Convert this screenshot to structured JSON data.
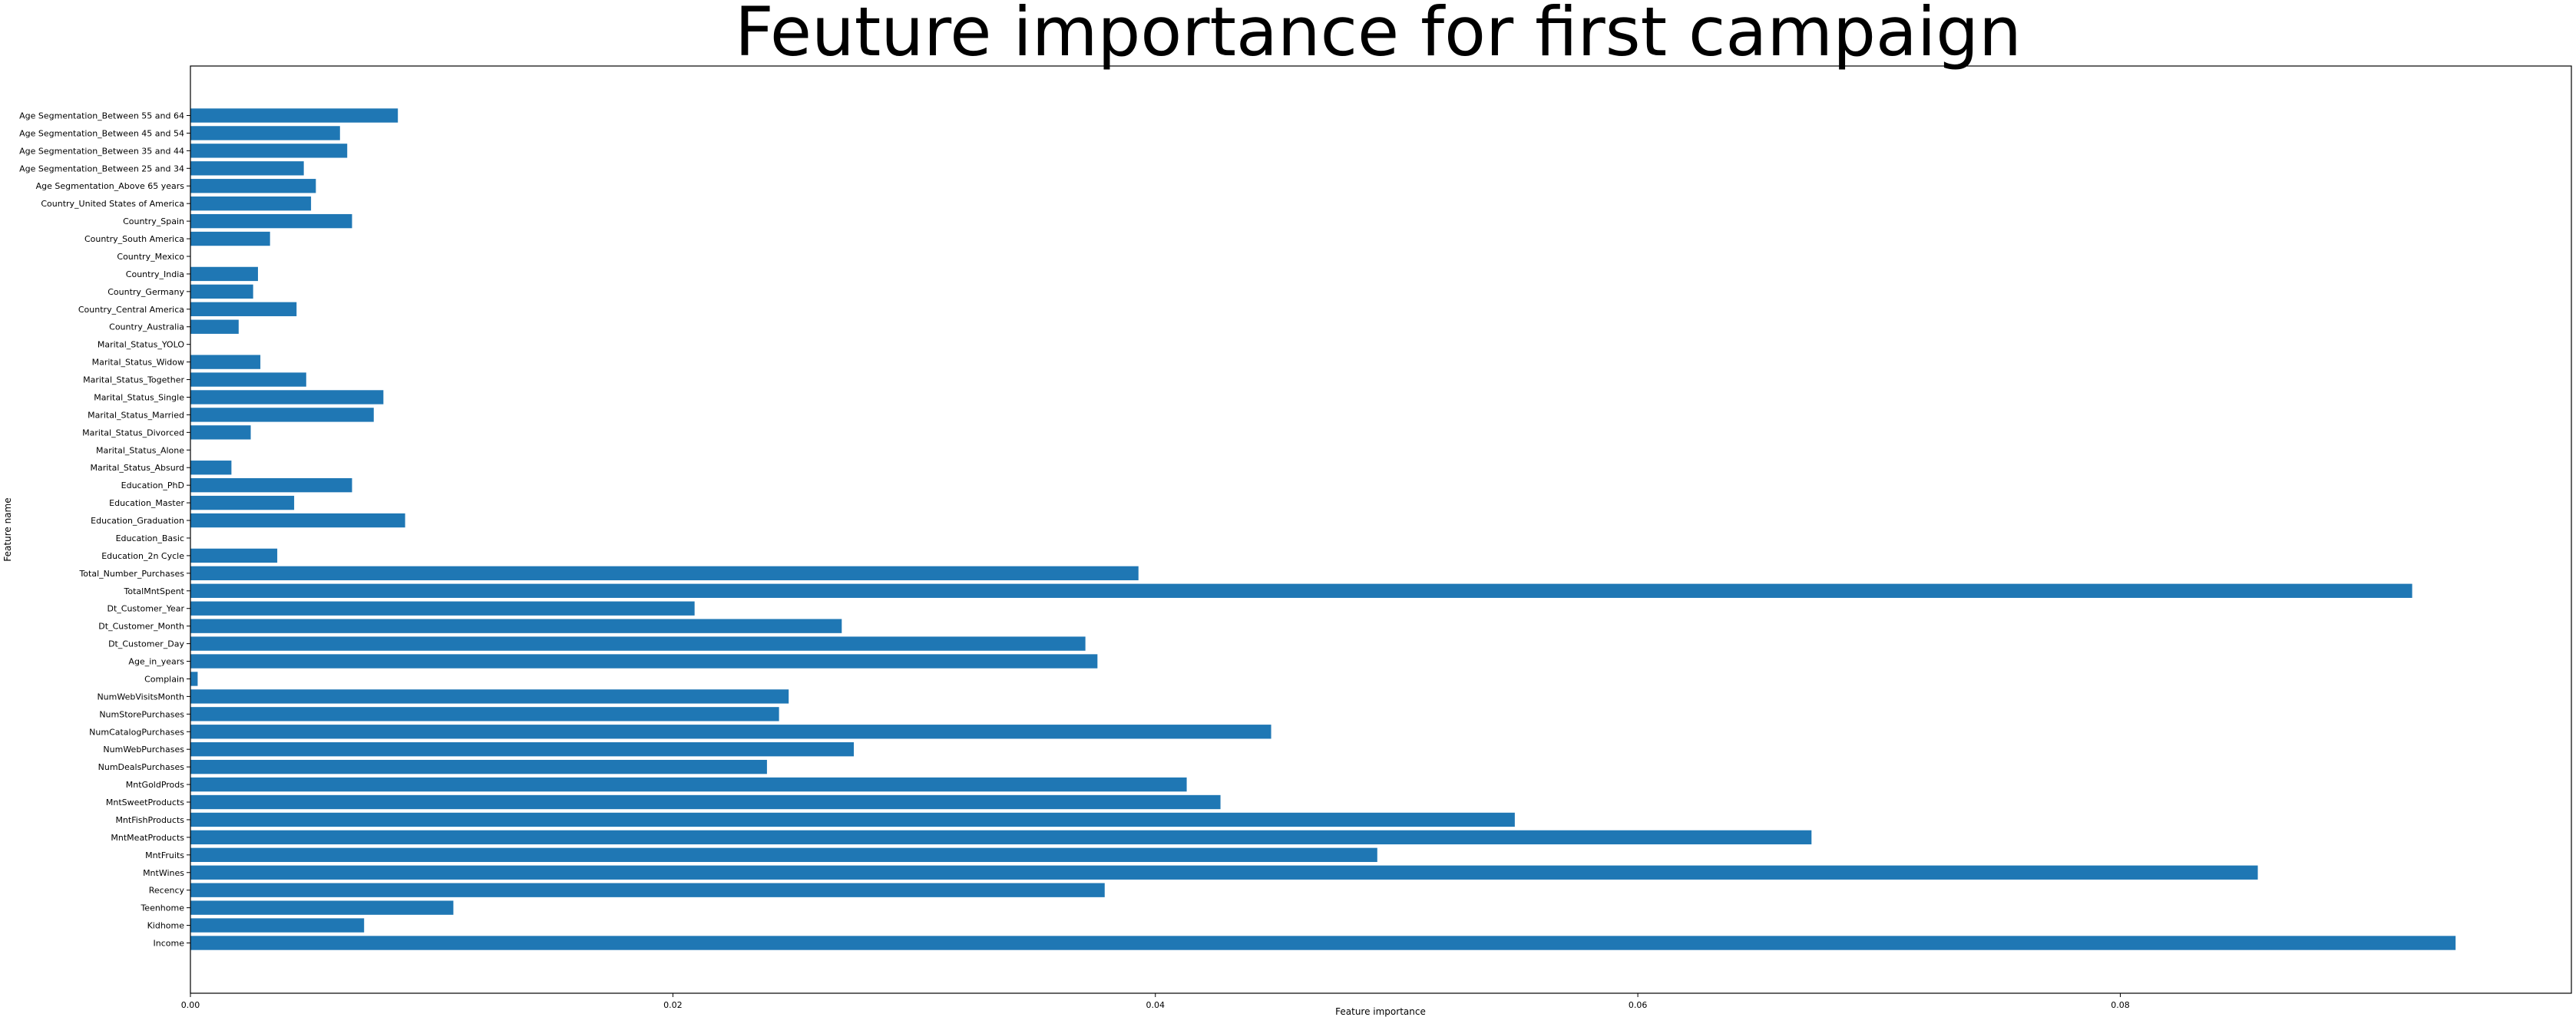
{
  "chart_data": {
    "type": "bar",
    "orientation": "horizontal",
    "title": "Feuture importance for first campaign",
    "xlabel": "Feature importance",
    "ylabel": "Feature name",
    "xlim": [
      0,
      0.0987
    ],
    "xticks": [
      0.0,
      0.02,
      0.04,
      0.06,
      0.08
    ],
    "xtick_labels": [
      "0.00",
      "0.02",
      "0.04",
      "0.06",
      "0.08"
    ],
    "grid": false,
    "bar_color": "#1f77b4",
    "categories": [
      "Income",
      "Kidhome",
      "Teenhome",
      "Recency",
      "MntWines",
      "MntFruits",
      "MntMeatProducts",
      "MntFishProducts",
      "MntSweetProducts",
      "MntGoldProds",
      "NumDealsPurchases",
      "NumWebPurchases",
      "NumCatalogPurchases",
      "NumStorePurchases",
      "NumWebVisitsMonth",
      "Complain",
      "Age_in_years",
      "Dt_Customer_Day",
      "Dt_Customer_Month",
      "Dt_Customer_Year",
      "TotalMntSpent",
      "Total_Number_Purchases",
      "Education_2n Cycle",
      "Education_Basic",
      "Education_Graduation",
      "Education_Master",
      "Education_PhD",
      "Marital_Status_Absurd",
      "Marital_Status_Alone",
      "Marital_Status_Divorced",
      "Marital_Status_Married",
      "Marital_Status_Single",
      "Marital_Status_Together",
      "Marital_Status_Widow",
      "Marital_Status_YOLO",
      "Country_Australia",
      "Country_Central America",
      "Country_Germany",
      "Country_India",
      "Country_Mexico",
      "Country_South America",
      "Country_Spain",
      "Country_United States of America",
      "Age Segmentation_Above 65 years",
      "Age Segmentation_Between 25 and 34",
      "Age Segmentation_Between 35 and 44",
      "Age Segmentation_Between 45 and 54",
      "Age Segmentation_Between 55 and 64"
    ],
    "values": [
      0.0939,
      0.0072,
      0.0109,
      0.0379,
      0.0857,
      0.0492,
      0.0672,
      0.0549,
      0.0427,
      0.0413,
      0.0239,
      0.0275,
      0.0448,
      0.0244,
      0.0248,
      0.0003,
      0.0376,
      0.0371,
      0.027,
      0.0209,
      0.0921,
      0.0393,
      0.0036,
      0.0,
      0.0089,
      0.0043,
      0.0067,
      0.0017,
      0.0,
      0.0025,
      0.0076,
      0.008,
      0.0048,
      0.0029,
      0.0,
      0.002,
      0.0044,
      0.0026,
      0.0028,
      0.0,
      0.0033,
      0.0067,
      0.005,
      0.0052,
      0.0047,
      0.0065,
      0.0062,
      0.0086
    ]
  }
}
